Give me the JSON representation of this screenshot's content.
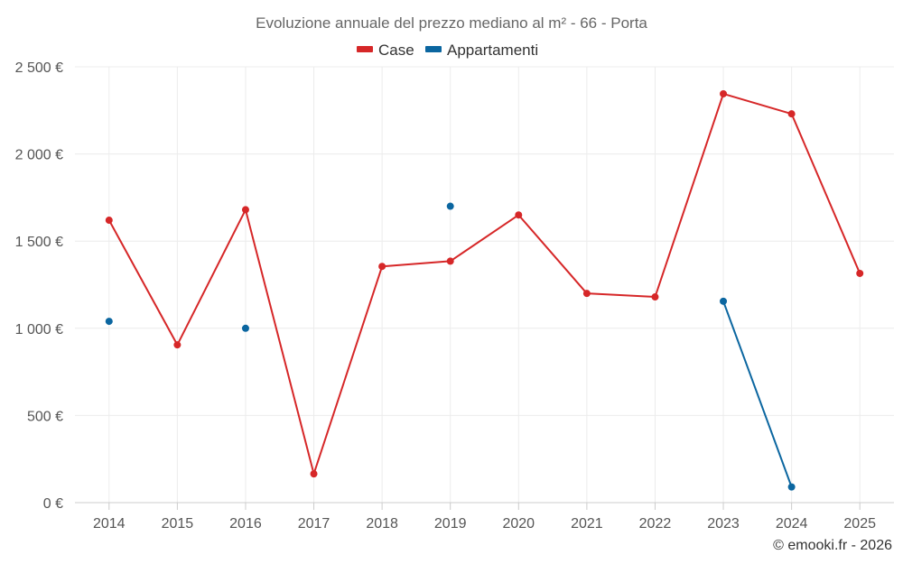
{
  "chart_data": {
    "type": "line",
    "title": "Evoluzione annuale del prezzo mediano al m² - 66 - Porta",
    "categories": [
      "2014",
      "2015",
      "2016",
      "2017",
      "2018",
      "2019",
      "2020",
      "2021",
      "2022",
      "2023",
      "2024",
      "2025"
    ],
    "series": [
      {
        "name": "Case",
        "color": "#d62728",
        "values": [
          1620,
          905,
          1680,
          165,
          1355,
          1385,
          1650,
          1200,
          1180,
          2345,
          2230,
          1315
        ]
      },
      {
        "name": "Appartamenti",
        "color": "#0b66a0",
        "values": [
          1040,
          null,
          1000,
          null,
          null,
          1700,
          null,
          null,
          null,
          1155,
          90,
          null
        ]
      }
    ],
    "ylim": [
      0,
      2500
    ],
    "yticks": [
      0,
      500,
      1000,
      1500,
      2000,
      2500
    ],
    "ytick_labels": [
      "0 €",
      "500 €",
      "1 000 €",
      "1 500 €",
      "2 000 €",
      "2 500 €"
    ],
    "xlabel": "",
    "ylabel": "",
    "grid": true,
    "legend_position": "top-center"
  },
  "credit": "© emooki.fr - 2026"
}
